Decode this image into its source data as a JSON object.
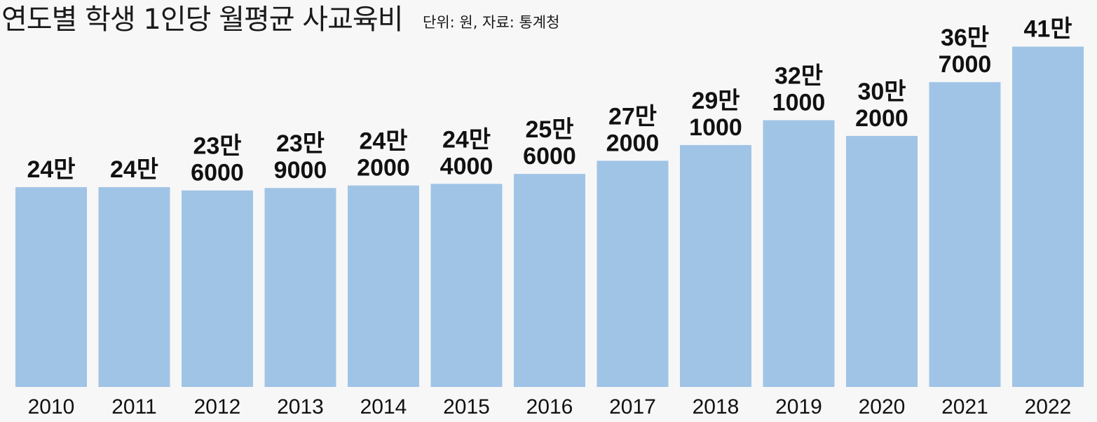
{
  "title": "연도별 학생 1인당 월평균 사교육비",
  "subtitle": "단위: 원, 자료: 통계청",
  "colors": {
    "bar": "#a0c4e6",
    "text": "#111111",
    "background": "#f7f7f7"
  },
  "chart_data": {
    "type": "bar",
    "title": "연도별 학생 1인당 월평균 사교육비",
    "subtitle": "단위: 원, 자료: 통계청",
    "categories": [
      "2010",
      "2011",
      "2012",
      "2013",
      "2014",
      "2015",
      "2016",
      "2017",
      "2018",
      "2019",
      "2020",
      "2021",
      "2022"
    ],
    "values": [
      240000,
      240000,
      236000,
      239000,
      242000,
      244000,
      256000,
      272000,
      291000,
      321000,
      302000,
      367000,
      410000
    ],
    "data_labels": [
      [
        "24만"
      ],
      [
        "24만"
      ],
      [
        "23만",
        "6000"
      ],
      [
        "23만",
        "9000"
      ],
      [
        "24만",
        "2000"
      ],
      [
        "24만",
        "4000"
      ],
      [
        "25만",
        "6000"
      ],
      [
        "27만",
        "2000"
      ],
      [
        "29만",
        "1000"
      ],
      [
        "32만",
        "1000"
      ],
      [
        "30만",
        "2000"
      ],
      [
        "36만",
        "7000"
      ],
      [
        "41만"
      ]
    ],
    "xlabel": "",
    "ylabel": "",
    "grid": false,
    "legend": "none"
  }
}
